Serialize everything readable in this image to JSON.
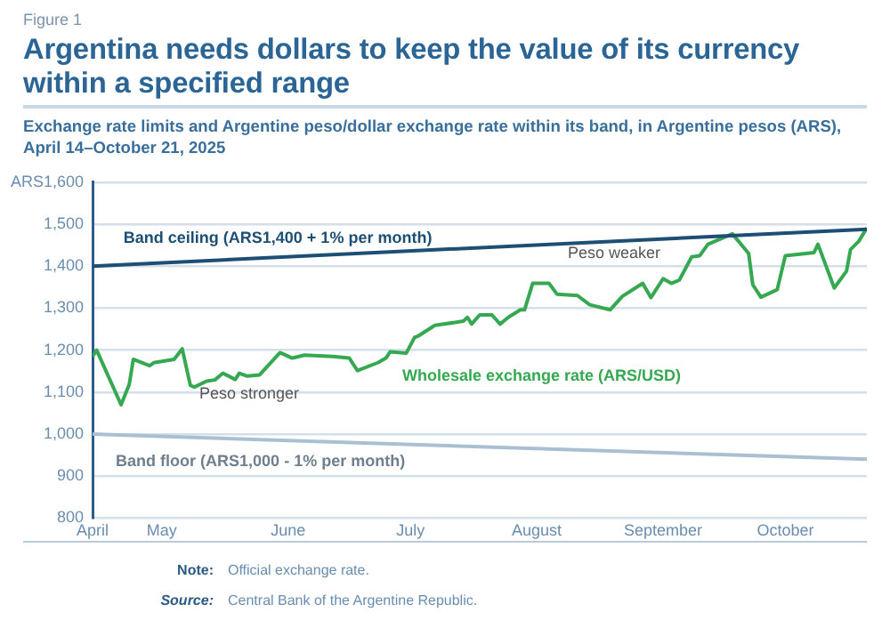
{
  "chart_data": {
    "type": "line",
    "title": "Argentina needs dollars to keep the value of its currency within a specified range",
    "subtitle": "Exchange rate limits and Argentine peso/dollar exchange rate within its band, in Argentine pesos (ARS), April 14–October 21, 2025",
    "annotations": [
      "Figure 1",
      "Peso weaker",
      "Peso stronger",
      "Note: Official exchange rate.",
      "Source: Central Bank of the Argentine Republic."
    ],
    "series": [
      {
        "name": "Band ceiling (ARS1,400 + 1% per month)",
        "color": "#1d4e74",
        "x": [
          "2025-04-14",
          "2025-10-21"
        ],
        "values": [
          1400,
          1488
        ]
      },
      {
        "name": "Band floor (ARS1,000 - 1% per month)",
        "color": "#a9c0d3",
        "x": [
          "2025-04-14",
          "2025-10-21"
        ],
        "values": [
          1000,
          940
        ]
      },
      {
        "name": "Wholesale exchange rate (ARS/USD)",
        "color": "#36a852",
        "x": [
          "2025-04-14",
          "2025-04-15",
          "2025-04-21",
          "2025-04-23",
          "2025-04-24",
          "2025-04-28",
          "2025-04-29",
          "2025-05-04",
          "2025-05-06",
          "2025-05-08",
          "2025-05-09",
          "2025-05-12",
          "2025-05-14",
          "2025-05-16",
          "2025-05-19",
          "2025-05-20",
          "2025-05-22",
          "2025-05-25",
          "2025-05-30",
          "2025-06-02",
          "2025-06-05",
          "2025-06-12",
          "2025-06-16",
          "2025-06-18",
          "2025-06-23",
          "2025-06-25",
          "2025-06-26",
          "2025-06-30",
          "2025-07-02",
          "2025-07-03",
          "2025-07-07",
          "2025-07-14",
          "2025-07-15",
          "2025-07-16",
          "2025-07-18",
          "2025-07-21",
          "2025-07-23",
          "2025-07-25",
          "2025-07-28",
          "2025-07-29",
          "2025-07-31",
          "2025-08-04",
          "2025-08-06",
          "2025-08-11",
          "2025-08-14",
          "2025-08-19",
          "2025-08-22",
          "2025-08-27",
          "2025-08-29",
          "2025-09-01",
          "2025-09-03",
          "2025-09-05",
          "2025-09-08",
          "2025-09-10",
          "2025-09-12",
          "2025-09-18",
          "2025-09-22",
          "2025-09-23",
          "2025-09-25",
          "2025-09-29",
          "2025-10-01",
          "2025-10-08",
          "2025-10-09",
          "2025-10-13",
          "2025-10-16",
          "2025-10-17",
          "2025-10-19",
          "2025-10-21"
        ],
        "values": [
          1185,
          1200,
          1070,
          1118,
          1178,
          1163,
          1170,
          1178,
          1203,
          1116,
          1112,
          1126,
          1129,
          1145,
          1130,
          1145,
          1138,
          1141,
          1194,
          1181,
          1188,
          1185,
          1181,
          1151,
          1170,
          1181,
          1196,
          1193,
          1230,
          1234,
          1259,
          1269,
          1278,
          1262,
          1284,
          1284,
          1262,
          1278,
          1296,
          1296,
          1359,
          1359,
          1333,
          1330,
          1308,
          1296,
          1328,
          1359,
          1325,
          1370,
          1359,
          1367,
          1422,
          1425,
          1452,
          1477,
          1430,
          1356,
          1326,
          1344,
          1425,
          1432,
          1452,
          1348,
          1388,
          1440,
          1459,
          1491
        ]
      }
    ],
    "xlim": [
      "2025-04-14",
      "2025-10-21"
    ],
    "xticks": [
      {
        "value": "2025-04-14",
        "label": "April"
      },
      {
        "value": "2025-05-01",
        "label": "May"
      },
      {
        "value": "2025-06-01",
        "label": "June"
      },
      {
        "value": "2025-07-01",
        "label": "July"
      },
      {
        "value": "2025-08-01",
        "label": "August"
      },
      {
        "value": "2025-09-01",
        "label": "September"
      },
      {
        "value": "2025-10-01",
        "label": "October"
      }
    ],
    "ylim": [
      800,
      1600
    ],
    "yticks": [
      {
        "value": 800,
        "label": "800"
      },
      {
        "value": 900,
        "label": "900"
      },
      {
        "value": 1000,
        "label": "1,000"
      },
      {
        "value": 1100,
        "label": "1,100"
      },
      {
        "value": 1200,
        "label": "1,200"
      },
      {
        "value": 1300,
        "label": "1,300"
      },
      {
        "value": 1400,
        "label": "1,400"
      },
      {
        "value": 1500,
        "label": "1,500"
      },
      {
        "value": 1600,
        "label": "ARS1,600"
      }
    ],
    "grid": "y",
    "legend": false,
    "marker": "none",
    "line_style": "solid"
  }
}
